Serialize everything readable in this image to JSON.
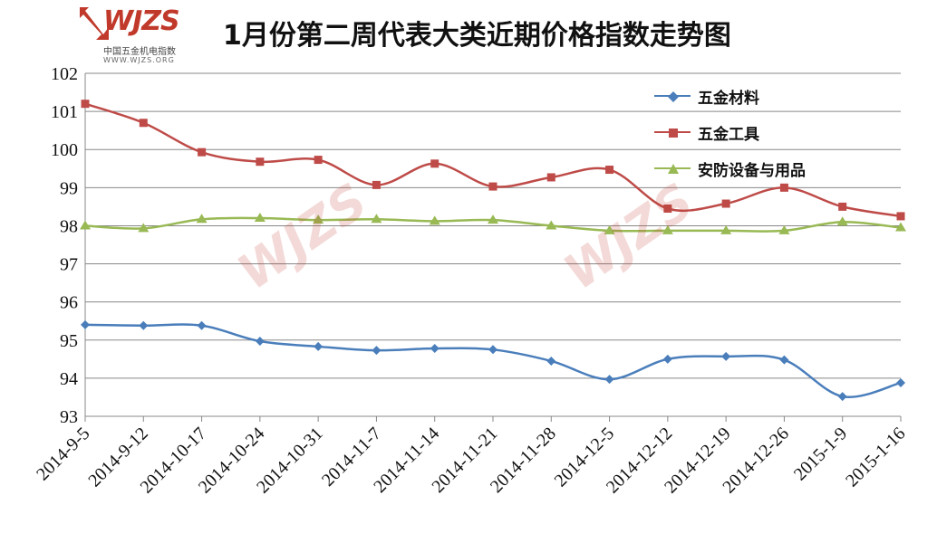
{
  "logo": {
    "mark": "WJZS",
    "cn": "中国五金机电指数",
    "url": "WWW.WJZS.ORG"
  },
  "title": "1月份第二周代表大类近期价格指数走势图",
  "colors": {
    "series1": "#4a7ebb",
    "series2": "#be4b48",
    "series3": "#98b954",
    "grid": "#888888",
    "axis": "#888888"
  },
  "chart_data": {
    "type": "line",
    "title": "1月份第二周代表大类近期价格指数走势图",
    "xlabel": "",
    "ylabel": "",
    "ylim": [
      93,
      102
    ],
    "yticks": [
      93,
      94,
      95,
      96,
      97,
      98,
      99,
      100,
      101,
      102
    ],
    "grid": true,
    "legend_position": "top-right",
    "categories": [
      "2014-9-5",
      "2014-9-12",
      "2014-10-17",
      "2014-10-24",
      "2014-10-31",
      "2014-11-7",
      "2014-11-14",
      "2014-11-21",
      "2014-11-28",
      "2014-12-5",
      "2014-12-12",
      "2014-12-19",
      "2014-12-26",
      "2015-1-9",
      "2015-1-16"
    ],
    "series": [
      {
        "name": "五金材料",
        "color": "#4a7ebb",
        "marker": "diamond",
        "values": [
          95.4,
          95.38,
          95.38,
          94.97,
          94.83,
          94.73,
          94.78,
          94.75,
          94.45,
          93.97,
          94.5,
          94.57,
          94.48,
          93.52,
          93.88
        ]
      },
      {
        "name": "五金工具",
        "color": "#be4b48",
        "marker": "square",
        "values": [
          101.2,
          100.7,
          99.93,
          99.68,
          99.73,
          99.07,
          99.63,
          99.03,
          99.27,
          99.47,
          98.45,
          98.58,
          99.0,
          98.5,
          98.25
        ]
      },
      {
        "name": "安防设备与用品",
        "color": "#98b954",
        "marker": "triangle",
        "values": [
          98.0,
          97.93,
          98.17,
          98.2,
          98.15,
          98.17,
          98.12,
          98.15,
          98.0,
          97.87,
          97.87,
          97.87,
          97.87,
          98.1,
          97.95
        ]
      }
    ]
  }
}
